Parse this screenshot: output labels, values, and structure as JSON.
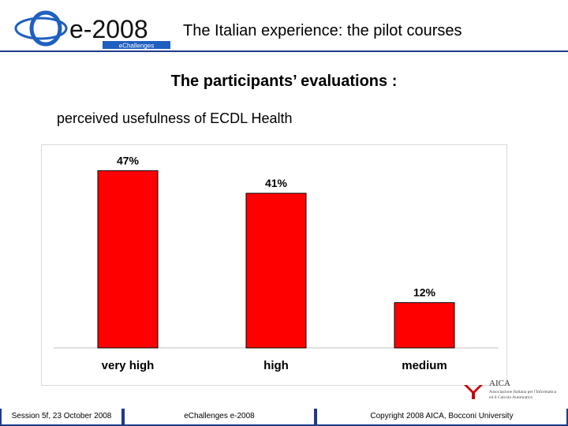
{
  "header": {
    "logo_text": "e-2008",
    "logo_subtext": "eChallenges",
    "title": "The Italian experience: the pilot courses"
  },
  "subtitle": "The participants’ evaluations :",
  "caption": "perceived usefulness of ECDL Health",
  "chart_data": {
    "type": "bar",
    "categories": [
      "very high",
      "high",
      "medium"
    ],
    "values": [
      47,
      41,
      12
    ],
    "value_labels": [
      "47%",
      "41%",
      "12%"
    ],
    "unit": "%",
    "ylim": [
      0,
      50
    ],
    "bar_color": "#ff0000",
    "bar_edge_color": "#000000",
    "grid": false,
    "legend": "none"
  },
  "aica_logo": {
    "text": "AICA",
    "subtext_line1": "Associazione Italiana per l'Informatica",
    "subtext_line2": "ed il Calcolo Automatico"
  },
  "footer": {
    "session": "Session 5f, 23 October 2008",
    "event": "eChallenges e-2008",
    "copyright": "Copyright 2008 AICA, Bocconi University"
  },
  "colors": {
    "header_rule": "#1f3a8a",
    "footer_bar": "#1f3a8a",
    "logo_blue": "#1f5fbf"
  }
}
